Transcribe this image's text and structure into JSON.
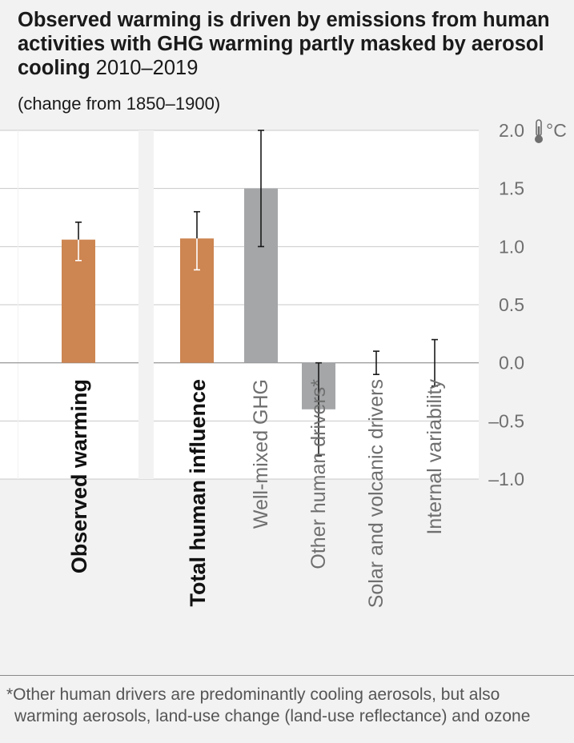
{
  "header": {
    "title": "Observed warming is driven by emissions from human activities with GHG warming partly masked by aerosol cooling",
    "title_period": "2010–2019",
    "subtitle": "(change from 1850–1900)"
  },
  "axis": {
    "unit": "°C",
    "unit_icon": "thermometer-icon",
    "ylim": [
      -1.0,
      2.0
    ],
    "ticks": [
      {
        "value": 2.0,
        "label": "2.0"
      },
      {
        "value": 1.5,
        "label": "1.5"
      },
      {
        "value": 1.0,
        "label": "1.0"
      },
      {
        "value": 0.5,
        "label": "0.5"
      },
      {
        "value": 0.0,
        "label": "0.0"
      },
      {
        "value": -0.5,
        "label": "–0.5"
      },
      {
        "value": -1.0,
        "label": "–1.0"
      }
    ]
  },
  "chart_data": {
    "type": "bar",
    "title": "Observed warming is driven by emissions from human activities with GHG warming partly masked by aerosol cooling 2010–2019",
    "subtitle": "(change from 1850–1900)",
    "ylabel": "°C",
    "ylim": [
      -1.0,
      2.0
    ],
    "grid": true,
    "panels": [
      {
        "name": "observed",
        "bars": [
          0
        ]
      },
      {
        "name": "attribution",
        "bars": [
          1,
          2,
          3,
          4,
          5
        ]
      }
    ],
    "categories": [
      "Observed warming",
      "Total human influence",
      "Well-mixed GHG",
      "Other human drivers*",
      "Solar and volcanic drivers",
      "Internal variability"
    ],
    "values": [
      1.06,
      1.07,
      1.5,
      -0.4,
      0.0,
      0.0
    ],
    "error_low": [
      0.88,
      0.8,
      1.0,
      -0.8,
      -0.1,
      -0.2
    ],
    "error_high": [
      1.21,
      1.3,
      2.0,
      0.0,
      0.1,
      0.2
    ],
    "bold_labels": [
      true,
      true,
      false,
      false,
      false,
      false
    ],
    "colors": [
      "#cd8551",
      "#cd8551",
      "#a4a6a8",
      "#a4a6a8",
      "#a4a6a8",
      "#a4a6a8"
    ]
  },
  "colors": {
    "background": "#f2f2f2",
    "panel": "#ffffff",
    "grid": "#c8c8c8",
    "human": "#cd8551",
    "other": "#a4a6a8",
    "error_bar_dark": "#1a1a1a",
    "error_bar_light": "#ffffff",
    "label_muted": "#6f6f6f",
    "tick_label": "#6f6f6f"
  },
  "footnote": {
    "line1": "*Other human drivers are predominantly cooling aerosols, but also",
    "line2": "warming aerosols, land-use change (land-use reflectance) and ozone"
  }
}
